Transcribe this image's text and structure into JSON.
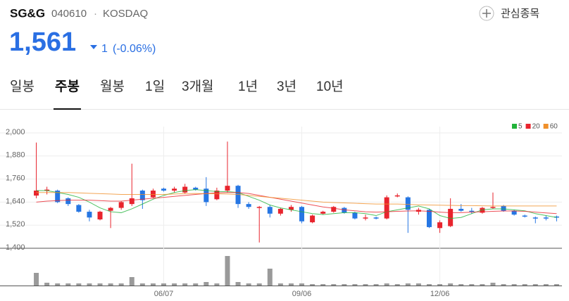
{
  "header": {
    "name": "SG&G",
    "code": "040610",
    "separator": "·",
    "market": "KOSDAQ",
    "watch_button": "관심종목"
  },
  "quote": {
    "price": "1,561",
    "change": "1",
    "change_pct": "(-0.06%)"
  },
  "tabs": {
    "items": [
      "일봉",
      "주봉",
      "월봉",
      "1일",
      "3개월",
      "1년",
      "3년",
      "10년"
    ],
    "selected": "주봉"
  },
  "chart_data": {
    "type": "candlestick",
    "categories": [
      null,
      null,
      null,
      null,
      null,
      null,
      null,
      null,
      null,
      null,
      null,
      null,
      "06/07",
      null,
      null,
      null,
      null,
      null,
      null,
      null,
      null,
      null,
      null,
      null,
      null,
      "09/06",
      null,
      null,
      null,
      null,
      null,
      null,
      null,
      null,
      null,
      null,
      null,
      null,
      "12/06",
      null,
      null,
      null,
      null,
      null,
      null,
      null,
      null,
      null,
      null,
      null
    ],
    "open": [
      1674,
      1700,
      1700,
      1660,
      1625,
      1590,
      1550,
      1595,
      1610,
      1630,
      1700,
      1665,
      1710,
      1700,
      1690,
      1715,
      1710,
      1655,
      1700,
      1725,
      1630,
      1610,
      1615,
      1580,
      1600,
      1615,
      1535,
      1580,
      1590,
      1610,
      1585,
      1555,
      1560,
      1555,
      1670,
      1665,
      1590,
      1600,
      1505,
      1515,
      1605,
      1595,
      1585,
      1610,
      1620,
      1595,
      1570,
      1560,
      1560,
      1565
    ],
    "high": [
      1950,
      1720,
      1705,
      1665,
      1630,
      1600,
      1595,
      1615,
      1645,
      1840,
      1705,
      1710,
      1715,
      1720,
      1735,
      1720,
      1770,
      1715,
      1955,
      1730,
      1640,
      1620,
      1625,
      1610,
      1625,
      1620,
      1575,
      1595,
      1620,
      1615,
      1590,
      1575,
      1565,
      1675,
      1685,
      1670,
      1610,
      1605,
      1545,
      1660,
      1630,
      1610,
      1615,
      1690,
      1625,
      1600,
      1575,
      1565,
      1570,
      1570
    ],
    "low": [
      1660,
      1680,
      1635,
      1620,
      1585,
      1540,
      1545,
      1505,
      1600,
      1620,
      1605,
      1660,
      1695,
      1690,
      1685,
      1700,
      1620,
      1650,
      1690,
      1610,
      1605,
      1430,
      1560,
      1570,
      1590,
      1530,
      1530,
      1575,
      1585,
      1580,
      1550,
      1545,
      1550,
      1550,
      1665,
      1480,
      1575,
      1505,
      1480,
      1510,
      1590,
      1580,
      1580,
      1605,
      1590,
      1570,
      1560,
      1530,
      1545,
      1540
    ],
    "close": [
      1700,
      1705,
      1640,
      1630,
      1590,
      1560,
      1590,
      1610,
      1640,
      1660,
      1650,
      1700,
      1700,
      1710,
      1720,
      1705,
      1640,
      1700,
      1725,
      1630,
      1615,
      1615,
      1580,
      1605,
      1615,
      1540,
      1570,
      1590,
      1615,
      1585,
      1555,
      1560,
      1555,
      1665,
      1675,
      1600,
      1600,
      1510,
      1535,
      1605,
      1595,
      1590,
      1610,
      1615,
      1595,
      1575,
      1565,
      1558,
      1555,
      1561
    ],
    "up_color": "#e8242d",
    "down_color": "#2676e3",
    "moving_averages": [
      {
        "name": "5",
        "color": "#22b33a",
        "values": [
          1700,
          1700,
          1690,
          1680,
          1665,
          1640,
          1610,
          1590,
          1585,
          1605,
          1630,
          1655,
          1675,
          1690,
          1700,
          1705,
          1700,
          1695,
          1695,
          1690,
          1670,
          1650,
          1625,
          1610,
          1600,
          1590,
          1580,
          1575,
          1580,
          1585,
          1585,
          1580,
          1570,
          1590,
          1600,
          1610,
          1620,
          1605,
          1570,
          1555,
          1560,
          1580,
          1600,
          1605,
          1605,
          1600,
          1595,
          1580,
          1570,
          1560
        ]
      },
      {
        "name": "20",
        "color": "#e8242d",
        "values": [
          1640,
          1645,
          1648,
          1650,
          1650,
          1650,
          1648,
          1645,
          1645,
          1650,
          1655,
          1660,
          1665,
          1670,
          1675,
          1680,
          1685,
          1688,
          1690,
          1690,
          1685,
          1675,
          1665,
          1655,
          1645,
          1635,
          1625,
          1615,
          1608,
          1600,
          1595,
          1590,
          1588,
          1590,
          1592,
          1594,
          1595,
          1592,
          1588,
          1585,
          1585,
          1588,
          1590,
          1592,
          1594,
          1594,
          1592,
          1588,
          1584,
          1580
        ]
      },
      {
        "name": "60",
        "color": "#f0902a",
        "values": [
          1690,
          1690,
          1690,
          1690,
          1688,
          1686,
          1684,
          1682,
          1680,
          1680,
          1680,
          1680,
          1680,
          1682,
          1684,
          1685,
          1684,
          1683,
          1682,
          1680,
          1675,
          1670,
          1665,
          1660,
          1655,
          1650,
          1645,
          1640,
          1638,
          1636,
          1634,
          1632,
          1630,
          1630,
          1630,
          1628,
          1626,
          1625,
          1624,
          1623,
          1622,
          1622,
          1621,
          1620,
          1620,
          1620,
          1620,
          1620,
          1620,
          1620
        ]
      }
    ],
    "volume": [
      18,
      4,
      3,
      3,
      3,
      3,
      3,
      3,
      3,
      12,
      3,
      3,
      3,
      3,
      3,
      3,
      5,
      3,
      42,
      5,
      3,
      3,
      24,
      3,
      3,
      3,
      2,
      2,
      2,
      2,
      2,
      2,
      2,
      3,
      2,
      3,
      3,
      2,
      2,
      3,
      2,
      2,
      2,
      4,
      2,
      2,
      2,
      2,
      2,
      2
    ],
    "volume_color": "#9a9a9a",
    "ylim": [
      1400,
      2000
    ],
    "yticks": [
      {
        "value": 2000,
        "label": "2,000"
      },
      {
        "value": 1880,
        "label": "1,880"
      },
      {
        "value": 1760,
        "label": "1,760"
      },
      {
        "value": 1640,
        "label": "1,640"
      },
      {
        "value": 1520,
        "label": "1,520"
      },
      {
        "value": 1400,
        "label": "1,400"
      }
    ],
    "grid": true
  }
}
